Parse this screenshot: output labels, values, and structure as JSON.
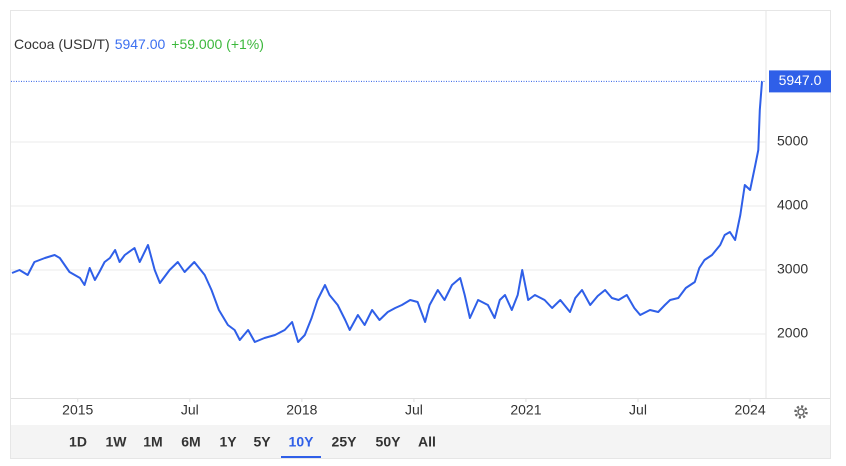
{
  "chart_data": {
    "type": "line",
    "title": "Cocoa (USD/T)",
    "price_label": "5947.00",
    "change_label": "+59.000 (+1%)",
    "last_value_label": "5947.0",
    "x": [
      2014.12,
      2014.22,
      2014.33,
      2014.42,
      2014.56,
      2014.69,
      2014.76,
      2014.89,
      2015.03,
      2015.09,
      2015.16,
      2015.23,
      2015.29,
      2015.36,
      2015.43,
      2015.5,
      2015.56,
      2015.63,
      2015.76,
      2015.83,
      2015.94,
      2016.03,
      2016.1,
      2016.23,
      2016.34,
      2016.43,
      2016.56,
      2016.7,
      2016.79,
      2016.89,
      2017.01,
      2017.1,
      2017.17,
      2017.28,
      2017.37,
      2017.5,
      2017.64,
      2017.77,
      2017.87,
      2017.95,
      2018.04,
      2018.13,
      2018.21,
      2018.31,
      2018.37,
      2018.48,
      2018.58,
      2018.64,
      2018.75,
      2018.84,
      2018.94,
      2019.04,
      2019.15,
      2019.25,
      2019.34,
      2019.45,
      2019.55,
      2019.65,
      2019.71,
      2019.82,
      2019.91,
      2020.01,
      2020.12,
      2020.18,
      2020.25,
      2020.36,
      2020.49,
      2020.58,
      2020.65,
      2020.72,
      2020.81,
      2020.89,
      2020.95,
      2021.03,
      2021.12,
      2021.25,
      2021.35,
      2021.46,
      2021.59,
      2021.66,
      2021.75,
      2021.86,
      2021.96,
      2022.06,
      2022.15,
      2022.24,
      2022.35,
      2022.45,
      2022.53,
      2022.66,
      2022.77,
      2022.86,
      2022.93,
      2023.04,
      2023.14,
      2023.26,
      2023.32,
      2023.39,
      2023.49,
      2023.6,
      2023.66,
      2023.73,
      2023.8,
      2023.87,
      2023.93,
      2024.0,
      2024.07,
      2024.11,
      2024.13,
      2024.16
    ],
    "series": [
      {
        "name": "Cocoa",
        "color": "#2f5fe8",
        "values": [
          2953,
          3000,
          2922,
          3125,
          3188,
          3234,
          3188,
          2969,
          2875,
          2766,
          3031,
          2844,
          2969,
          3125,
          3188,
          3313,
          3125,
          3234,
          3344,
          3125,
          3391,
          3000,
          2797,
          3000,
          3125,
          2969,
          3125,
          2922,
          2688,
          2375,
          2141,
          2063,
          1906,
          2063,
          1875,
          1938,
          1984,
          2063,
          2188,
          1875,
          1984,
          2250,
          2531,
          2766,
          2609,
          2453,
          2219,
          2063,
          2297,
          2141,
          2375,
          2219,
          2344,
          2406,
          2453,
          2531,
          2500,
          2188,
          2453,
          2688,
          2531,
          2766,
          2875,
          2609,
          2250,
          2531,
          2453,
          2250,
          2531,
          2609,
          2375,
          2609,
          3000,
          2531,
          2609,
          2531,
          2406,
          2531,
          2344,
          2563,
          2688,
          2453,
          2594,
          2688,
          2563,
          2531,
          2609,
          2406,
          2297,
          2375,
          2344,
          2453,
          2531,
          2563,
          2719,
          2813,
          3031,
          3156,
          3234,
          3391,
          3547,
          3594,
          3469,
          3859,
          4328,
          4250,
          4641,
          4875,
          5500,
          5947
        ]
      }
    ],
    "xlim": [
      2014.12,
      2024.2
    ],
    "xticks": [
      2015,
      {
        "value": 2016.5,
        "label": "Jul"
      },
      2018,
      {
        "value": 2019.5,
        "label": "Jul"
      },
      2021,
      {
        "value": 2022.5,
        "label": "Jul"
      },
      2024
    ],
    "ylim": [
      1000,
      7000
    ],
    "yticks": [
      2000,
      3000,
      4000,
      5000
    ],
    "grid": true,
    "ranges": [
      "1D",
      "1W",
      "1M",
      "6M",
      "1Y",
      "5Y",
      "10Y",
      "25Y",
      "50Y",
      "All"
    ],
    "active_range_index": 6
  }
}
